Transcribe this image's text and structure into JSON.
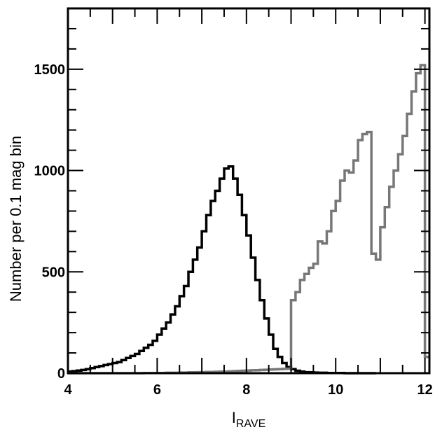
{
  "chart_data": {
    "type": "line",
    "step": true,
    "xlabel": "I",
    "xlabel_sub": "RAVE",
    "ylabel": "Number per 0.1 mag bin",
    "xlim": [
      4,
      12.1
    ],
    "ylim": [
      0,
      1800
    ],
    "xticks": [
      4,
      6,
      8,
      10,
      12
    ],
    "yticks": [
      0,
      500,
      1000,
      1500
    ],
    "grid": false,
    "colors": {
      "series1": "#000000",
      "series2": "#777777"
    },
    "series": [
      {
        "color": "#000000",
        "x": [
          4.0,
          4.1,
          4.2,
          4.3,
          4.4,
          4.5,
          4.6,
          4.7,
          4.8,
          4.9,
          5.0,
          5.1,
          5.2,
          5.3,
          5.4,
          5.5,
          5.6,
          5.7,
          5.8,
          5.9,
          6.0,
          6.1,
          6.2,
          6.3,
          6.4,
          6.5,
          6.6,
          6.7,
          6.8,
          6.9,
          7.0,
          7.1,
          7.2,
          7.3,
          7.4,
          7.5,
          7.6,
          7.7,
          7.8,
          7.9,
          8.0,
          8.1,
          8.2,
          8.3,
          8.4,
          8.5,
          8.6,
          8.7,
          8.8,
          8.9,
          9.0,
          9.1,
          9.2,
          9.3,
          9.4,
          9.5,
          9.6,
          9.7,
          9.8,
          9.9,
          10.0,
          10.1,
          10.2,
          10.3,
          10.4,
          10.5,
          10.6,
          10.7,
          10.8
        ],
        "values": [
          8,
          10,
          13,
          16,
          20,
          25,
          30,
          35,
          40,
          45,
          50,
          55,
          65,
          75,
          85,
          95,
          110,
          125,
          140,
          160,
          190,
          220,
          250,
          290,
          330,
          380,
          430,
          500,
          560,
          620,
          700,
          780,
          850,
          900,
          960,
          1010,
          1020,
          960,
          880,
          780,
          680,
          570,
          460,
          360,
          270,
          190,
          120,
          80,
          50,
          30,
          20,
          12,
          8,
          5,
          4,
          3,
          2,
          2,
          1,
          1,
          1,
          1,
          0,
          0,
          0,
          0,
          0,
          0,
          0
        ]
      },
      {
        "color": "#777777",
        "x": [
          4.0,
          4.1,
          4.2,
          4.3,
          4.4,
          4.5,
          4.6,
          4.7,
          4.8,
          4.9,
          5.0,
          5.1,
          5.2,
          5.3,
          5.4,
          5.5,
          5.6,
          5.7,
          5.8,
          5.9,
          6.0,
          6.1,
          6.2,
          6.3,
          6.4,
          6.5,
          6.6,
          6.7,
          6.8,
          6.9,
          7.0,
          7.1,
          7.2,
          7.3,
          7.4,
          7.5,
          7.6,
          7.7,
          7.8,
          7.9,
          8.0,
          8.1,
          8.2,
          8.3,
          8.4,
          8.5,
          8.6,
          8.7,
          8.8,
          8.9,
          9.0,
          9.1,
          9.2,
          9.3,
          9.4,
          9.5,
          9.6,
          9.7,
          9.8,
          9.9,
          10.0,
          10.1,
          10.2,
          10.3,
          10.4,
          10.5,
          10.6,
          10.7,
          10.8,
          10.9,
          11.0,
          11.1,
          11.2,
          11.3,
          11.4,
          11.5,
          11.6,
          11.7,
          11.8,
          11.9,
          12.0
        ],
        "values": [
          0,
          0,
          0,
          0,
          0,
          0,
          0,
          0,
          0,
          0,
          0,
          0,
          0,
          0,
          0,
          0,
          0,
          1,
          1,
          1,
          1,
          1,
          2,
          2,
          2,
          3,
          3,
          4,
          4,
          5,
          5,
          6,
          6,
          7,
          8,
          8,
          9,
          10,
          11,
          12,
          13,
          14,
          15,
          16,
          17,
          18,
          19,
          20,
          21,
          22,
          360,
          400,
          460,
          490,
          520,
          540,
          650,
          640,
          700,
          800,
          850,
          950,
          1000,
          990,
          1050,
          1150,
          1180,
          1190,
          590,
          560,
          720,
          820,
          920,
          1000,
          1080,
          1170,
          1280,
          1390,
          1480,
          1520,
          80
        ]
      }
    ]
  }
}
